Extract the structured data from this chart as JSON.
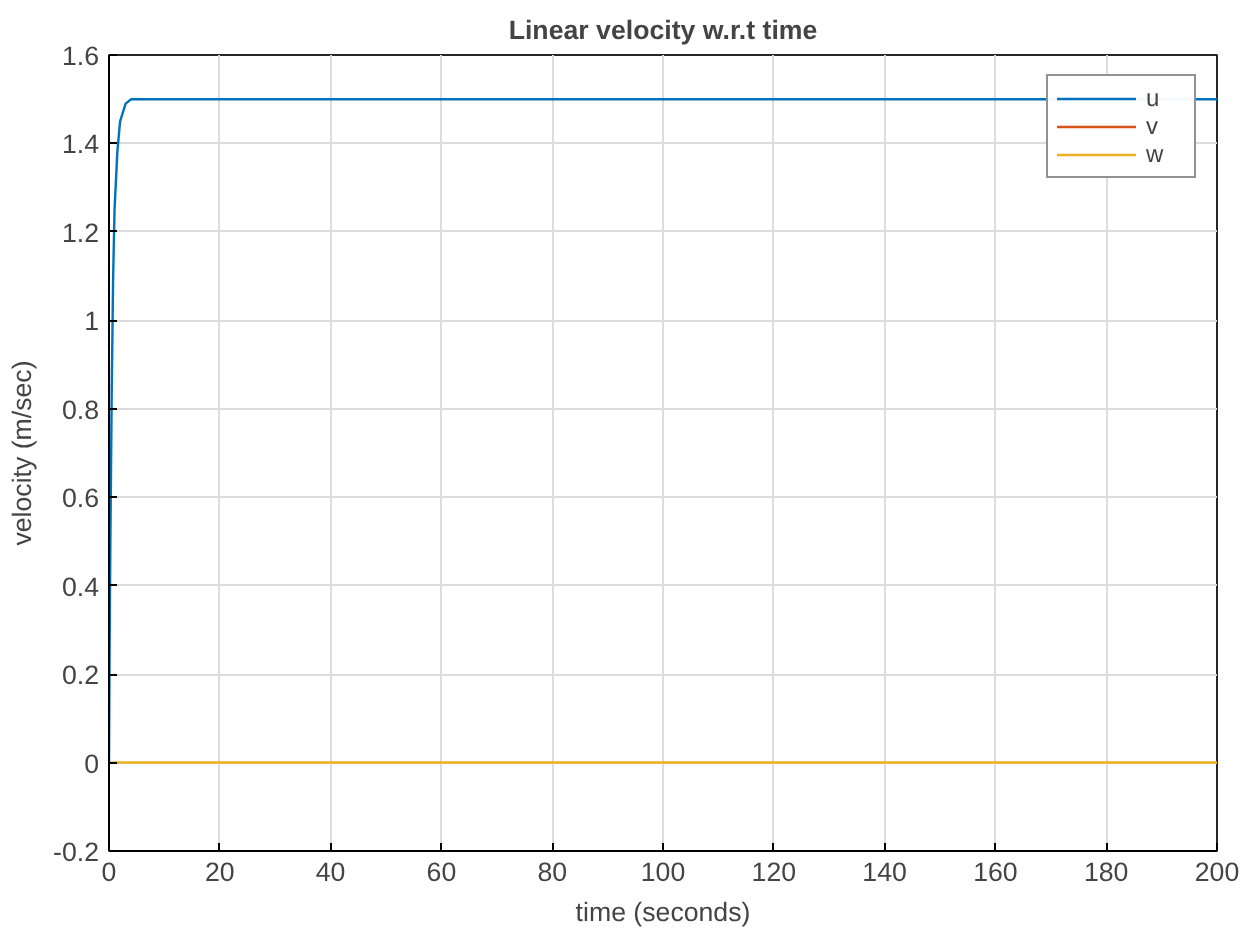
{
  "chart_data": {
    "type": "line",
    "title": "Linear velocity w.r.t time",
    "xlabel": "time (seconds)",
    "ylabel": "velocity (m/sec)",
    "series": [
      {
        "name": "u",
        "color": "#0072bd",
        "x": [
          0,
          0.1,
          0.25,
          0.5,
          0.75,
          1,
          1.5,
          2,
          3,
          4,
          200
        ],
        "values": [
          0,
          0.25,
          0.5,
          0.85,
          1.1,
          1.25,
          1.38,
          1.45,
          1.49,
          1.5,
          1.5
        ]
      },
      {
        "name": "v",
        "color": "#d95319"
      },
      {
        "name": "w",
        "color": "#edb120",
        "x": [
          0,
          200
        ],
        "values": [
          0,
          0
        ]
      }
    ],
    "xlim": [
      0,
      200
    ],
    "xticks": [
      0,
      20,
      40,
      60,
      80,
      100,
      120,
      140,
      160,
      180,
      200
    ],
    "ylim": [
      -0.2,
      1.6
    ],
    "yticks": [
      -0.2,
      0,
      0.2,
      0.4,
      0.6,
      0.8,
      1,
      1.2,
      1.4,
      1.6
    ],
    "grid": true,
    "legend": "top right",
    "marker": "none",
    "line_style": "solid"
  }
}
